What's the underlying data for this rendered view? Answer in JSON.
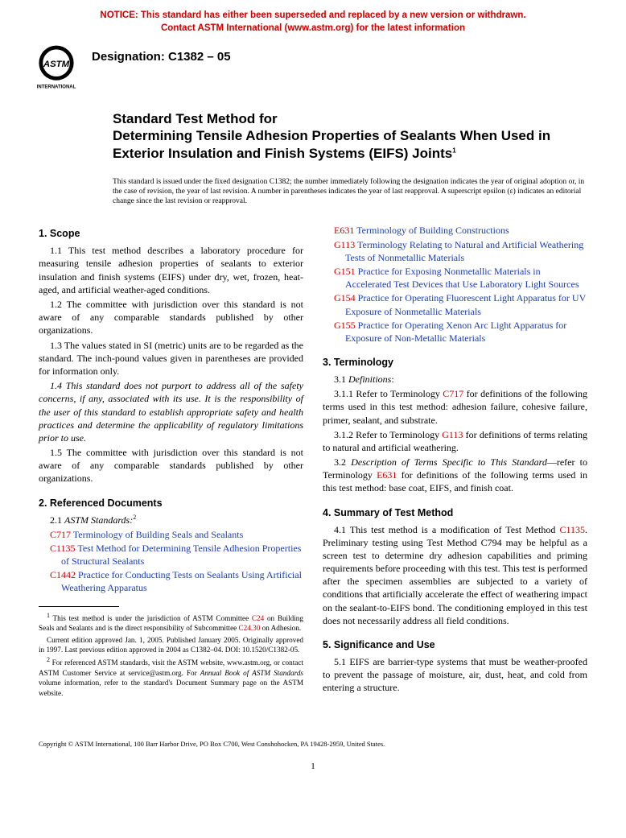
{
  "notice": {
    "line1": "NOTICE: This standard has either been superseded and replaced by a new version or withdrawn.",
    "line2": "Contact ASTM International (www.astm.org) for the latest information",
    "color": "#cc0000"
  },
  "logo": {
    "text_top": "INTERNATIONAL"
  },
  "designation": "Designation: C1382 – 05",
  "title": {
    "line1": "Standard Test Method for",
    "line2": "Determining Tensile Adhesion Properties of Sealants When Used in Exterior Insulation and Finish Systems (EIFS) Joints",
    "superscript": "1"
  },
  "adoption_note": "This standard is issued under the fixed designation C1382; the number immediately following the designation indicates the year of original adoption or, in the case of revision, the year of last revision. A number in parentheses indicates the year of last reapproval. A superscript epsilon (ε) indicates an editorial change since the last revision or reapproval.",
  "colors": {
    "link_blue": "#1a3db3",
    "link_red": "#cc0000",
    "text": "#000000"
  },
  "sections": {
    "scope": {
      "head": "1. Scope",
      "p1": "1.1 This test method describes a laboratory procedure for measuring tensile adhesion properties of sealants to exterior insulation and finish systems (EIFS) under dry, wet, frozen, heat-aged, and artificial weather-aged conditions.",
      "p2": "1.2 The committee with jurisdiction over this standard is not aware of any comparable standards published by other organizations.",
      "p3": "1.3 The values stated in SI (metric) units are to be regarded as the standard. The inch-pound values given in parentheses are provided for information only.",
      "p4": "1.4 This standard does not purport to address all of the safety concerns, if any, associated with its use. It is the responsibility of the user of this standard to establish appropriate safety and health practices and determine the applicability of regulatory limitations prior to use.",
      "p5": "1.5 The committee with jurisdiction over this standard is not aware of any comparable standards published by other organizations."
    },
    "refdocs": {
      "head": "2. Referenced Documents",
      "sub": "2.1 ",
      "sub_label": "ASTM Standards:",
      "sub_sup": "2",
      "items_left": [
        {
          "code": "C717",
          "color": "red",
          "title": "Terminology of Building Seals and Sealants"
        },
        {
          "code": "C1135",
          "color": "red",
          "title": "Test Method for Determining Tensile Adhesion Properties of Structural Sealants"
        },
        {
          "code": "C1442",
          "color": "red",
          "title": "Practice for Conducting Tests on Sealants Using Artificial Weathering Apparatus"
        }
      ],
      "items_right": [
        {
          "code": "E631",
          "color": "red",
          "title": "Terminology of Building Constructions"
        },
        {
          "code": "G113",
          "color": "red",
          "title": "Terminology Relating to Natural and Artificial Weathering Tests of Nonmetallic Materials"
        },
        {
          "code": "G151",
          "color": "red",
          "title": "Practice for Exposing Nonmetallic Materials in Accelerated Test Devices that Use Laboratory Light Sources"
        },
        {
          "code": "G154",
          "color": "red",
          "title": "Practice for Operating Fluorescent Light Apparatus for UV Exposure of Nonmetallic Materials"
        },
        {
          "code": "G155",
          "color": "red",
          "title": "Practice for Operating Xenon Arc Light Apparatus for Exposure of Non-Metallic Materials"
        }
      ]
    },
    "terminology": {
      "head": "3. Terminology",
      "p1_num": "3.1 ",
      "p1_label": "Definitions",
      "p1_colon": ":",
      "p2_pre": "3.1.1 Refer to Terminology ",
      "p2_link": "C717",
      "p2_post": " for definitions of the following terms used in this test method: adhesion failure, cohesive failure, primer, sealant, and substrate.",
      "p3_pre": "3.1.2 Refer to Terminology ",
      "p3_link": "G113",
      "p3_post": " for definitions of terms relating to natural and artificial weathering.",
      "p4_num": "3.2 ",
      "p4_label": "Description of Terms Specific to This Standard",
      "p4_mid": "—refer to Terminology ",
      "p4_link": "E631",
      "p4_post": " for definitions of the following terms used in this test method: base coat, EIFS, and finish coat."
    },
    "summary": {
      "head": "4. Summary of Test Method",
      "p1_pre": "4.1 This test method is a modification of Test Method ",
      "p1_link": "C1135",
      "p1_post": ". Preliminary testing using Test Method C794 may be helpful as a screen test to determine dry adhesion capabilities and priming requirements before proceeding with this test. This test is performed after the specimen assemblies are subjected to a variety of conditions that artificially accelerate the effect of weathering impact on the sealant-to-EIFS bond. The conditioning employed in this test does not necessarily address all field conditions."
    },
    "significance": {
      "head": "5. Significance and Use",
      "p1": "5.1 EIFS are barrier-type systems that must be weather-proofed to prevent the passage of moisture, air, dust, heat, and cold from entering a structure."
    }
  },
  "footnotes": {
    "f1_pre": " This test method is under the jurisdiction of ASTM Committee ",
    "f1_link1": "C24",
    "f1_mid": " on Building Seals and Sealants and is the direct responsibility of Subcommittee ",
    "f1_link2": "C24.30",
    "f1_post": " on Adhesion.",
    "f1b": "Current edition approved Jan. 1, 2005. Published January 2005. Originally approved in 1997. Last previous edition approved in 2004 as C1382–04. DOI: 10.1520/C1382-05.",
    "f2_pre": " For referenced ASTM standards, visit the ASTM website, www.astm.org, or contact ASTM Customer Service at service@astm.org. For ",
    "f2_italic": "Annual Book of ASTM Standards",
    "f2_post": " volume information, refer to the standard's Document Summary page on the ASTM website."
  },
  "copyright": "Copyright © ASTM International, 100 Barr Harbor Drive, PO Box C700, West Conshohocken, PA 19428-2959, United States.",
  "pagenum": "1"
}
